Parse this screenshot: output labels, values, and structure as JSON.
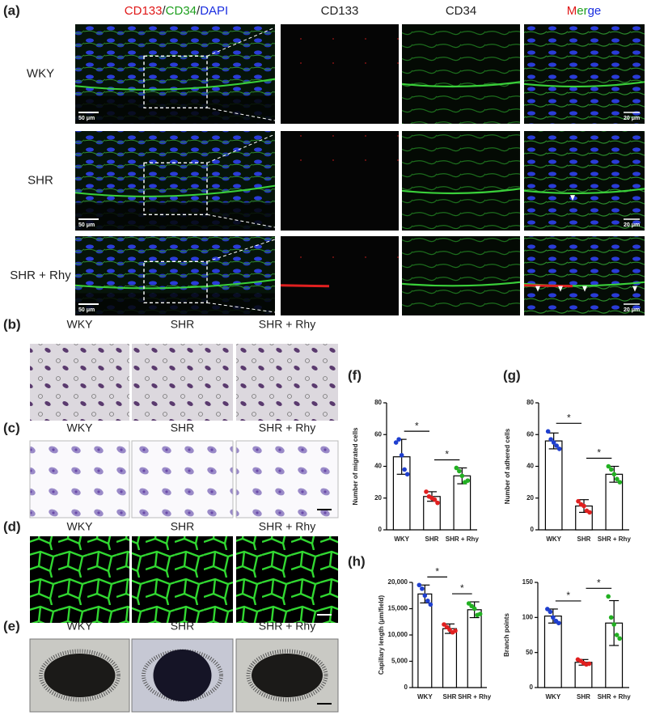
{
  "panel_labels": {
    "a": "(a)",
    "b": "(b)",
    "c": "(c)",
    "d": "(d)",
    "e": "(e)",
    "f": "(f)",
    "g": "(g)",
    "h": "(h)"
  },
  "panel_a": {
    "overview_header": [
      "CD133",
      "/",
      "CD34",
      "/",
      "DAPI"
    ],
    "column_headers": {
      "cd133": "CD133",
      "cd34": "CD34",
      "merge": [
        "M",
        "er",
        "ge"
      ]
    },
    "rows": [
      "WKY",
      "SHR",
      "SHR + Rhy"
    ],
    "scale_bars": {
      "overview": "50 μm",
      "zoom": "20 μm"
    }
  },
  "group_labels": [
    "WKY",
    "SHR",
    "SHR + Rhy"
  ],
  "chart_data": [
    {
      "type": "bar",
      "ylabel": "Number of migrated cells",
      "categories": [
        "WKY",
        "SHR",
        "SHR + Rhy"
      ],
      "values": [
        46,
        21,
        34
      ],
      "errors": [
        11,
        3,
        5
      ],
      "points": [
        [
          55,
          57,
          47,
          38,
          35
        ],
        [
          24,
          21,
          20,
          19,
          17
        ],
        [
          39,
          37,
          34,
          30,
          31
        ]
      ],
      "point_colors": [
        "#1f3fcf",
        "#e02020",
        "#22b022"
      ],
      "ylim": [
        0,
        80
      ],
      "yticks": [
        0,
        20,
        40,
        60,
        80
      ],
      "annotations": [
        "*",
        "*"
      ]
    },
    {
      "type": "bar",
      "ylabel": "Number of adhered cells",
      "categories": [
        "WKY",
        "SHR",
        "SHR + Rhy"
      ],
      "values": [
        56,
        15,
        35
      ],
      "errors": [
        5,
        4,
        5
      ],
      "points": [
        [
          62,
          57,
          55,
          53,
          51
        ],
        [
          18,
          16,
          15,
          12,
          11
        ],
        [
          40,
          38,
          35,
          32,
          30
        ]
      ],
      "point_colors": [
        "#1f3fcf",
        "#e02020",
        "#22b022"
      ],
      "ylim": [
        0,
        80
      ],
      "yticks": [
        0,
        20,
        40,
        60,
        80
      ],
      "annotations": [
        "*",
        "*"
      ]
    },
    {
      "type": "bar",
      "ylabel": "Capillary length (μm/field)",
      "categories": [
        "WKY",
        "SHR",
        "SHR + Rhy"
      ],
      "values": [
        17800,
        11200,
        14800
      ],
      "errors": [
        1700,
        900,
        1500
      ],
      "points": [
        [
          19500,
          18800,
          17500,
          16500,
          15800
        ],
        [
          12000,
          11500,
          11000,
          10500,
          10800
        ],
        [
          16000,
          15500,
          15000,
          13800,
          14000
        ]
      ],
      "point_colors": [
        "#1f3fcf",
        "#e02020",
        "#22b022"
      ],
      "ylim": [
        0,
        20000
      ],
      "yticks": [
        0,
        {
          "value": 5000,
          "label": "5,000"
        },
        {
          "value": 10000,
          "label": "10,000"
        },
        {
          "value": 15000,
          "label": "15,000"
        },
        {
          "value": 20000,
          "label": "20,000"
        }
      ],
      "annotations": [
        "*",
        "*"
      ]
    },
    {
      "type": "bar",
      "ylabel": "Branch points",
      "categories": [
        "WKY",
        "SHR",
        "SHR + Rhy"
      ],
      "values": [
        102,
        36,
        92
      ],
      "errors": [
        10,
        4,
        32
      ],
      "points": [
        [
          112,
          108,
          100,
          95,
          92
        ],
        [
          40,
          38,
          35,
          33,
          34
        ],
        [
          130,
          100,
          90,
          75,
          70
        ]
      ],
      "point_colors": [
        "#1f3fcf",
        "#e02020",
        "#22b022"
      ],
      "ylim": [
        0,
        150
      ],
      "yticks": [
        0,
        50,
        100,
        150
      ],
      "annotations": [
        "*",
        "*"
      ]
    }
  ]
}
